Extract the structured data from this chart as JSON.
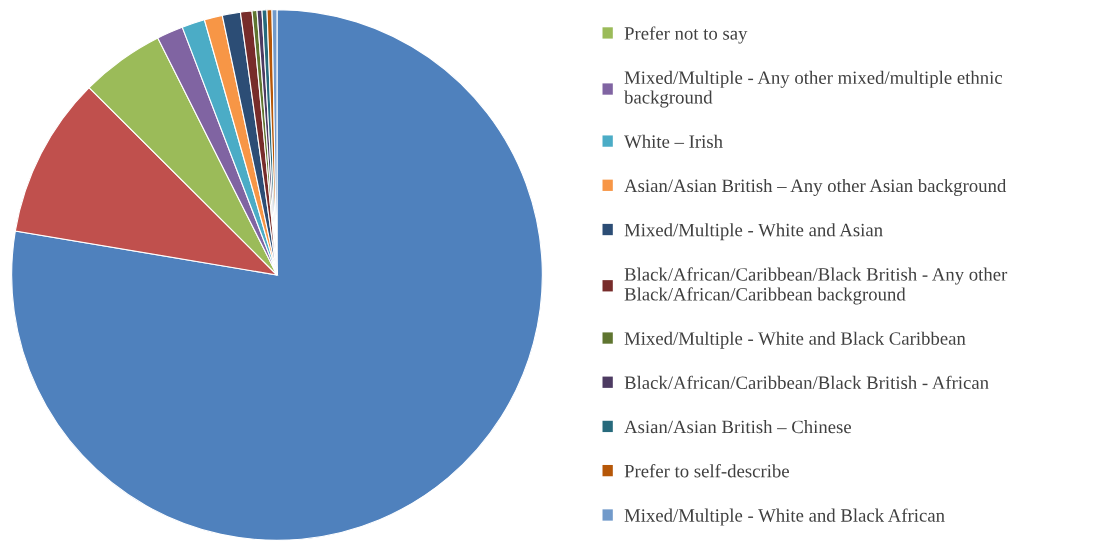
{
  "chart_data": {
    "type": "pie",
    "legend": "right",
    "categories": [
      null,
      null,
      "Prefer not to say",
      "Mixed/Multiple - Any other mixed/multiple ethnic background",
      "White – Irish",
      "Asian/Asian British – Any other Asian background",
      "Mixed/Multiple - White and Asian",
      "Black/African/Caribbean/Black British - Any other Black/African/Caribbean background",
      "Mixed/Multiple - White and Black Caribbean",
      "Black/African/Caribbean/Black British - African",
      "Asian/Asian British – Chinese",
      "Prefer to self-describe",
      "Mixed/Multiple - White and Black African"
    ],
    "values": [
      77.5,
      9.8,
      5.1,
      1.6,
      1.4,
      1.1,
      1.1,
      0.7,
      0.3,
      0.3,
      0.3,
      0.3,
      0.3
    ],
    "colors": [
      "#4f81bd",
      "#c0504d",
      "#9bbb59",
      "#8064a2",
      "#4bacc6",
      "#f79646",
      "#2c4d75",
      "#772c2a",
      "#5f7530",
      "#4d3b62",
      "#276a7c",
      "#b65708",
      "#729aca"
    ]
  }
}
